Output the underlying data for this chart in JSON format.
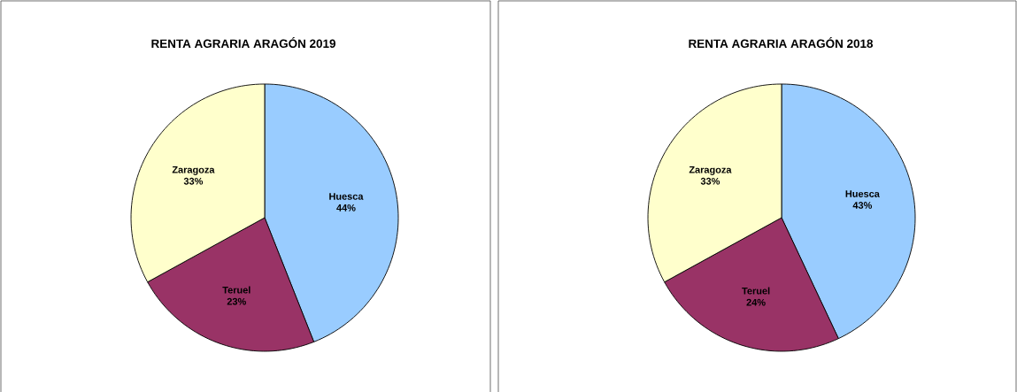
{
  "chart_data": [
    {
      "type": "pie",
      "title": "RENTA AGRARIA ARAGÓN 2019",
      "categories": [
        "Huesca",
        "Teruel",
        "Zaragoza"
      ],
      "values": [
        44,
        23,
        33
      ],
      "value_labels": [
        "44%",
        "23%",
        "33%"
      ],
      "colors": [
        "#99ccff",
        "#993366",
        "#ffffcc"
      ],
      "legend": false
    },
    {
      "type": "pie",
      "title": "RENTA AGRARIA ARAGÓN 2018",
      "categories": [
        "Huesca",
        "Teruel",
        "Zaragoza"
      ],
      "values": [
        43,
        24,
        33
      ],
      "value_labels": [
        "43%",
        "24%",
        "33%"
      ],
      "colors": [
        "#99ccff",
        "#993366",
        "#ffffcc"
      ],
      "legend": false
    }
  ]
}
